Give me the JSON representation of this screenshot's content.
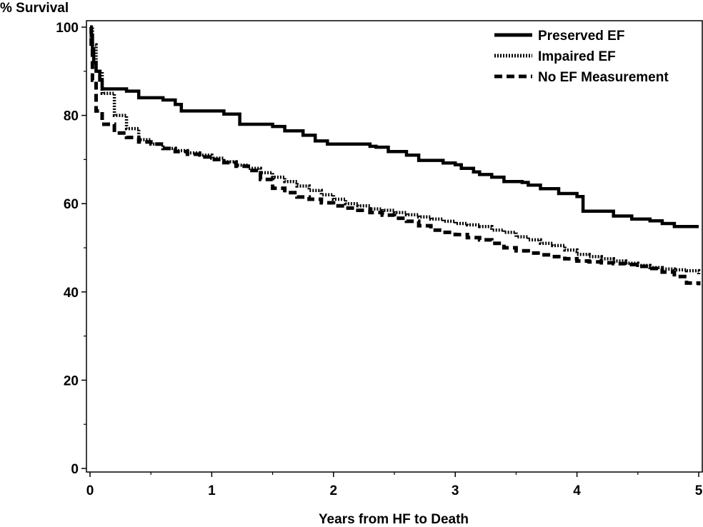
{
  "chart_data": {
    "type": "line",
    "title": "",
    "xlabel": "Years from HF to Death",
    "ylabel": "% Survival",
    "xlim": [
      0,
      5
    ],
    "ylim": [
      0,
      100
    ],
    "xticks": [
      0,
      1,
      2,
      3,
      4,
      5
    ],
    "yticks": [
      0,
      20,
      40,
      60,
      80,
      100
    ],
    "grid": false,
    "legend_position": "top-right",
    "step": true,
    "series": [
      {
        "name": "Preserved EF",
        "style": "solid",
        "color": "#000000",
        "x": [
          0,
          0.01,
          0.02,
          0.03,
          0.05,
          0.08,
          0.1,
          0.2,
          0.3,
          0.4,
          0.6,
          0.7,
          0.75,
          1.1,
          1.23,
          1.5,
          1.6,
          1.75,
          1.85,
          1.95,
          2.3,
          2.35,
          2.45,
          2.6,
          2.7,
          2.9,
          3.0,
          3.05,
          3.15,
          3.2,
          3.3,
          3.4,
          3.55,
          3.6,
          3.7,
          3.85,
          4.0,
          4.05,
          4.3,
          4.45,
          4.6,
          4.7,
          4.8,
          5.0
        ],
        "y": [
          100,
          98,
          95,
          92,
          90,
          88,
          86,
          86,
          85.5,
          84,
          83.5,
          82.5,
          81,
          80.3,
          78,
          77.5,
          76.5,
          75.5,
          74.2,
          73.5,
          73,
          72.8,
          71.8,
          71,
          69.8,
          69.2,
          68.8,
          68,
          67.2,
          66.6,
          66,
          65,
          64.8,
          64.2,
          63.4,
          62.3,
          61.6,
          58.3,
          57.2,
          56.5,
          56.1,
          55.5,
          54.8,
          54.8
        ]
      },
      {
        "name": "Impaired EF",
        "style": "dotted",
        "color": "#000000",
        "x": [
          0,
          0.02,
          0.05,
          0.1,
          0.2,
          0.3,
          0.4,
          0.5,
          0.6,
          0.7,
          0.8,
          0.9,
          1.0,
          1.1,
          1.2,
          1.3,
          1.4,
          1.5,
          1.6,
          1.7,
          1.8,
          1.9,
          2.0,
          2.1,
          2.2,
          2.3,
          2.4,
          2.5,
          2.6,
          2.7,
          2.8,
          2.9,
          3.0,
          3.1,
          3.2,
          3.3,
          3.4,
          3.5,
          3.6,
          3.7,
          3.8,
          3.9,
          4.0,
          4.1,
          4.2,
          4.3,
          4.4,
          4.5,
          4.6,
          4.7,
          4.8,
          4.9,
          5.0
        ],
        "y": [
          100,
          96,
          90,
          85,
          80,
          77,
          74.5,
          73.5,
          72.5,
          72,
          71.5,
          71,
          70.3,
          69.5,
          68.7,
          68,
          67,
          66,
          65,
          64,
          63,
          62,
          61,
          60,
          59.5,
          58.8,
          58.5,
          58,
          57.5,
          57,
          56.5,
          56,
          55.5,
          55.2,
          54.8,
          54,
          53.5,
          52.5,
          51.8,
          51,
          50.5,
          49.5,
          48.5,
          48,
          47.5,
          47,
          46.5,
          46,
          45.5,
          45.2,
          45,
          44.8,
          44
        ]
      },
      {
        "name": "No EF Measurement",
        "style": "dashed",
        "color": "#000000",
        "x": [
          0,
          0.01,
          0.02,
          0.05,
          0.1,
          0.2,
          0.3,
          0.4,
          0.5,
          0.6,
          0.7,
          0.8,
          0.9,
          1.0,
          1.1,
          1.2,
          1.3,
          1.4,
          1.5,
          1.6,
          1.7,
          1.8,
          1.9,
          2.0,
          2.1,
          2.2,
          2.3,
          2.4,
          2.5,
          2.6,
          2.7,
          2.8,
          2.9,
          3.0,
          3.1,
          3.2,
          3.3,
          3.4,
          3.5,
          3.6,
          3.7,
          3.8,
          3.9,
          4.0,
          4.1,
          4.2,
          4.3,
          4.4,
          4.5,
          4.6,
          4.7,
          4.8,
          4.9,
          5.0
        ],
        "y": [
          100,
          95,
          88,
          81,
          78,
          76,
          75,
          74,
          73.5,
          72.5,
          71.8,
          71.2,
          70.6,
          70,
          69.3,
          68.5,
          67.5,
          65.5,
          63.5,
          62.5,
          61.5,
          61,
          60.2,
          59.5,
          59,
          58.5,
          58,
          57.4,
          56.7,
          56,
          55,
          54,
          53.5,
          53,
          52.3,
          51.8,
          51,
          50,
          49.3,
          48.8,
          48.4,
          48,
          47.5,
          47,
          46.8,
          46.6,
          46.4,
          46.2,
          45.8,
          45.3,
          44.5,
          43.5,
          42,
          41.5
        ]
      }
    ]
  }
}
